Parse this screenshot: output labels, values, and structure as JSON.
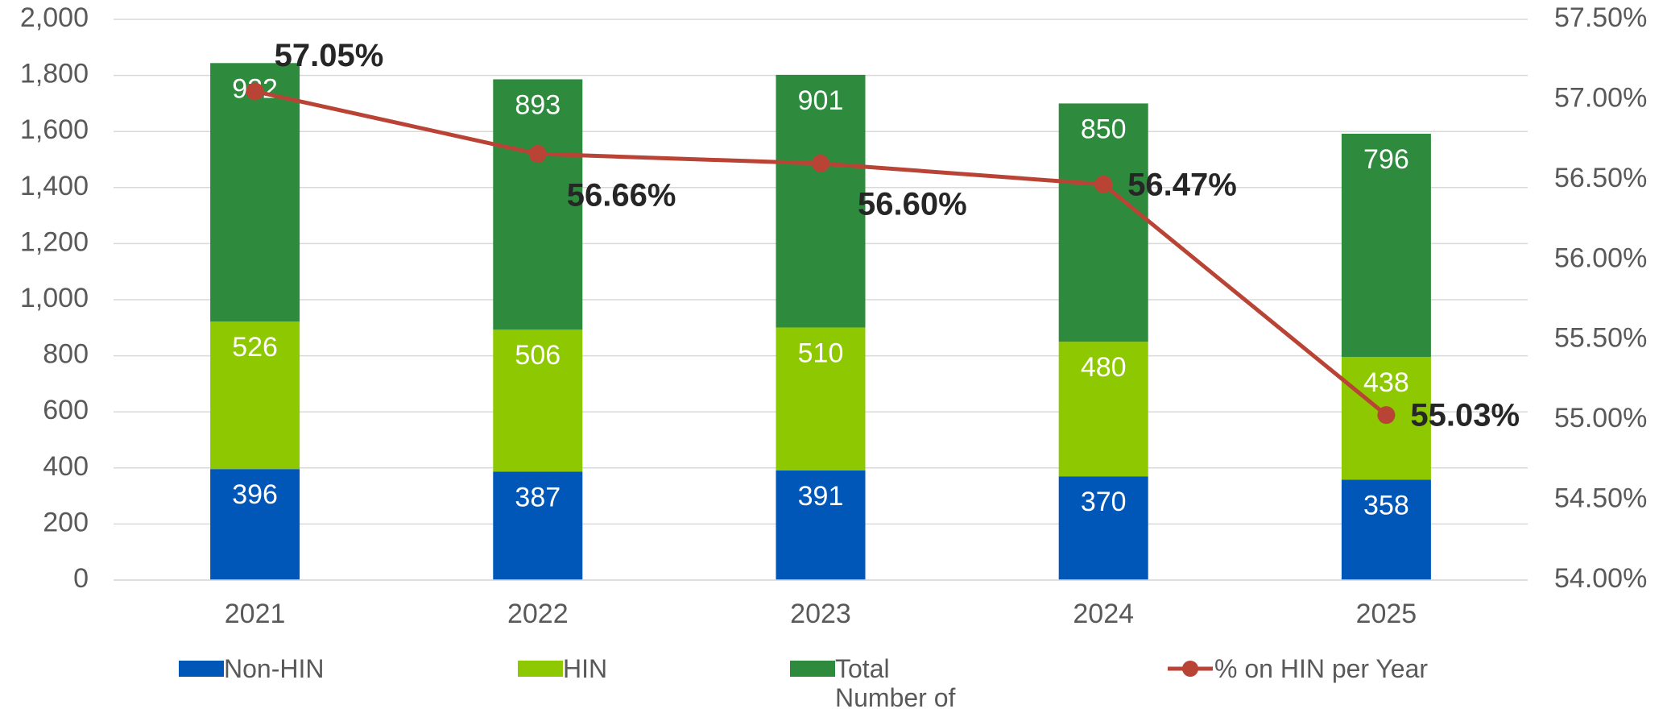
{
  "chart_data": {
    "type": "bar",
    "stacked": true,
    "categories": [
      "2021",
      "2022",
      "2023",
      "2024",
      "2025"
    ],
    "series": [
      {
        "name": "Non-HIN",
        "color": "#0057b8",
        "values": [
          396,
          387,
          391,
          370,
          358
        ]
      },
      {
        "name": "HIN",
        "color": "#8dc800",
        "values": [
          526,
          506,
          510,
          480,
          438
        ]
      },
      {
        "name": "Total Number of Crashes",
        "color": "#2e8b3e",
        "values": [
          922,
          893,
          901,
          850,
          796
        ]
      },
      {
        "name": "% on HIN per Year",
        "color": "#b94436",
        "type": "line",
        "axis": "y2",
        "values": [
          57.05,
          56.66,
          56.6,
          56.47,
          55.03
        ],
        "value_labels": [
          "57.05%",
          "56.66%",
          "56.60%",
          "56.47%",
          "55.03%"
        ]
      }
    ],
    "ylim": [
      0,
      2000
    ],
    "yticks": [
      0,
      200,
      400,
      600,
      800,
      {
        "value": 1000,
        "label": "1,000"
      },
      {
        "value": 1200,
        "label": "1,200"
      },
      {
        "value": 1400,
        "label": "1,400"
      },
      {
        "value": 1600,
        "label": "1,600"
      },
      {
        "value": 1800,
        "label": "1,800"
      },
      {
        "value": 2000,
        "label": "2,000"
      }
    ],
    "y2lim": [
      54,
      57.5
    ],
    "y2ticks": [
      {
        "value": 54,
        "label": "54.00%"
      },
      {
        "value": 54.5,
        "label": "54.50%"
      },
      {
        "value": 55,
        "label": "55.00%"
      },
      {
        "value": 55.5,
        "label": "55.50%"
      },
      {
        "value": 56,
        "label": "56.00%"
      },
      {
        "value": 56.5,
        "label": "56.50%"
      },
      {
        "value": 57,
        "label": "57.00%"
      },
      {
        "value": 57.5,
        "label": "57.50%"
      }
    ],
    "grid": true,
    "legend": "bottom"
  }
}
